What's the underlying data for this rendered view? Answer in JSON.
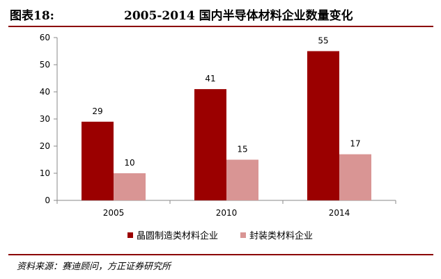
{
  "header": {
    "label": "图表18:",
    "title": "2005-2014 国内半导体材料企业数量变化"
  },
  "chart_data": {
    "type": "bar",
    "title": "",
    "xlabel": "",
    "ylabel": "",
    "categories": [
      "2005",
      "2010",
      "2014"
    ],
    "series": [
      {
        "name": "晶圆制造类材料企业",
        "values": [
          29,
          41,
          55
        ],
        "color": "#9b0000"
      },
      {
        "name": "封装类材料企业",
        "values": [
          10,
          15,
          17
        ],
        "color": "#d99594"
      }
    ],
    "ylim": [
      0,
      60
    ],
    "yticks": [
      0,
      10,
      20,
      30,
      40,
      50,
      60
    ],
    "grid": false,
    "legend": "bottom"
  },
  "source": {
    "text": "资料来源：赛迪顾问，方正证券研究所"
  }
}
